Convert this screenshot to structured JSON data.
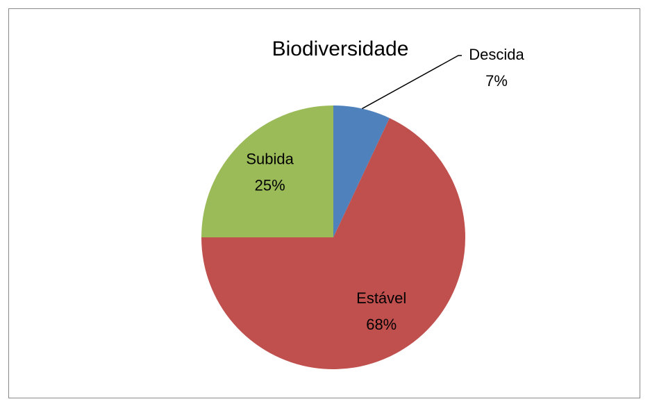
{
  "chart_data": {
    "type": "pie",
    "title": "Biodiversidade",
    "categories": [
      "Descida",
      "Estável",
      "Subida"
    ],
    "values": [
      7,
      68,
      25
    ],
    "value_labels": [
      "7%",
      "68%",
      "25%"
    ],
    "colors": [
      "#4f81bd",
      "#c0504d",
      "#9bbb59"
    ]
  }
}
